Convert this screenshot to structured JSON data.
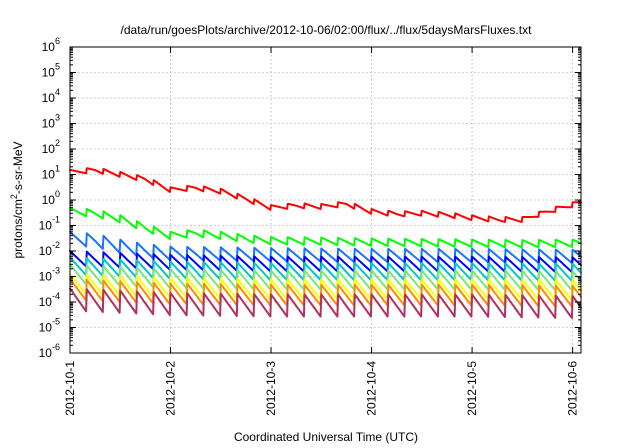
{
  "chart_data": {
    "type": "line",
    "title": "/data/run/goesPlots/archive/2012-10-06/02:00/flux/../flux/5daysMarsFluxes.txt",
    "xlabel": "Coordinated Universal Time (UTC)",
    "ylabel_parts": [
      "protons/cm",
      "2",
      "-s-sr-MeV"
    ],
    "y_scale": "log",
    "ylim": [
      1e-06,
      1000000.0
    ],
    "xlim": [
      "2012-10-01T00:00",
      "2012-10-06T02:00"
    ],
    "grid": true,
    "legend": "none",
    "x_ticks": [
      "2012-10-1",
      "2012-10-2",
      "2012-10-3",
      "2012-10-4",
      "2012-10-5",
      "2012-10-6"
    ],
    "y_ticks": [
      {
        "base": "10",
        "exp": "-6"
      },
      {
        "base": "10",
        "exp": "-5"
      },
      {
        "base": "10",
        "exp": "-4"
      },
      {
        "base": "10",
        "exp": "-3"
      },
      {
        "base": "10",
        "exp": "-2"
      },
      {
        "base": "10",
        "exp": "-1"
      },
      {
        "base": "10",
        "exp": "0"
      },
      {
        "base": "10",
        "exp": "1"
      },
      {
        "base": "10",
        "exp": "2"
      },
      {
        "base": "10",
        "exp": "3"
      },
      {
        "base": "10",
        "exp": "4"
      },
      {
        "base": "10",
        "exp": "5"
      },
      {
        "base": "10",
        "exp": "6"
      }
    ],
    "cycle_period_hours": 4,
    "series": [
      {
        "color": "#ff0000",
        "points": [
          [
            "2012-10-01T00:00",
            12
          ],
          [
            "2012-10-01T06:00",
            15
          ],
          [
            "2012-10-01T12:00",
            10
          ],
          [
            "2012-10-01T18:00",
            6.5
          ],
          [
            "2012-10-02T00:00",
            2.5
          ],
          [
            "2012-10-02T06:00",
            3
          ],
          [
            "2012-10-02T12:00",
            2.2
          ],
          [
            "2012-10-02T18:00",
            1.1
          ],
          [
            "2012-10-03T00:00",
            0.5
          ],
          [
            "2012-10-03T06:00",
            0.6
          ],
          [
            "2012-10-03T12:00",
            0.55
          ],
          [
            "2012-10-03T18:00",
            0.7
          ],
          [
            "2012-10-04T00:00",
            0.35
          ],
          [
            "2012-10-04T06:00",
            0.28
          ],
          [
            "2012-10-04T12:00",
            0.3
          ],
          [
            "2012-10-04T18:00",
            0.26
          ],
          [
            "2012-10-05T00:00",
            0.2
          ],
          [
            "2012-10-05T06:00",
            0.17
          ],
          [
            "2012-10-05T12:00",
            0.17
          ],
          [
            "2012-10-05T18:00",
            0.35
          ],
          [
            "2012-10-06T02:00",
            0.8
          ]
        ],
        "swing": 1.6
      },
      {
        "color": "#00ff00",
        "points": [
          [
            "2012-10-01T00:00",
            0.35
          ],
          [
            "2012-10-01T06:00",
            0.3
          ],
          [
            "2012-10-01T12:00",
            0.18
          ],
          [
            "2012-10-01T18:00",
            0.08
          ],
          [
            "2012-10-02T00:00",
            0.04
          ],
          [
            "2012-10-02T06:00",
            0.05
          ],
          [
            "2012-10-02T12:00",
            0.04
          ],
          [
            "2012-10-02T18:00",
            0.03
          ],
          [
            "2012-10-03T00:00",
            0.025
          ],
          [
            "2012-10-03T12:00",
            0.024
          ],
          [
            "2012-10-04T00:00",
            0.022
          ],
          [
            "2012-10-04T12:00",
            0.021
          ],
          [
            "2012-10-05T00:00",
            0.02
          ],
          [
            "2012-10-05T12:00",
            0.019
          ],
          [
            "2012-10-06T02:00",
            0.02
          ]
        ],
        "swing": 2.0
      },
      {
        "color": "#1874ff",
        "points": [
          [
            "2012-10-01T00:00",
            0.03
          ],
          [
            "2012-10-01T06:00",
            0.025
          ],
          [
            "2012-10-01T12:00",
            0.015
          ],
          [
            "2012-10-01T18:00",
            0.01
          ],
          [
            "2012-10-02T00:00",
            0.008
          ],
          [
            "2012-10-03T00:00",
            0.007
          ],
          [
            "2012-10-04T00:00",
            0.0065
          ],
          [
            "2012-10-05T00:00",
            0.0065
          ],
          [
            "2012-10-06T02:00",
            0.006
          ]
        ],
        "swing": 3.5
      },
      {
        "color": "#0000ff",
        "points": [
          [
            "2012-10-01T00:00",
            0.005
          ],
          [
            "2012-10-02T00:00",
            0.0035
          ],
          [
            "2012-10-03T00:00",
            0.003
          ],
          [
            "2012-10-04T00:00",
            0.003
          ],
          [
            "2012-10-05T00:00",
            0.003
          ],
          [
            "2012-10-06T02:00",
            0.0028
          ]
        ],
        "swing": 4.0
      },
      {
        "color": "#00c8c8",
        "points": [
          [
            "2012-10-01T00:00",
            0.0025
          ],
          [
            "2012-10-02T00:00",
            0.0017
          ],
          [
            "2012-10-03T00:00",
            0.0015
          ],
          [
            "2012-10-04T00:00",
            0.0015
          ],
          [
            "2012-10-05T00:00",
            0.0015
          ],
          [
            "2012-10-06T02:00",
            0.0014
          ]
        ],
        "swing": 5.0
      },
      {
        "color": "#78e678",
        "points": [
          [
            "2012-10-01T00:00",
            0.0012
          ],
          [
            "2012-10-02T00:00",
            0.0008
          ],
          [
            "2012-10-03T00:00",
            0.0007
          ],
          [
            "2012-10-04T00:00",
            0.0007
          ],
          [
            "2012-10-05T00:00",
            0.0007
          ],
          [
            "2012-10-06T02:00",
            0.00065
          ]
        ],
        "swing": 6.0
      },
      {
        "color": "#ffff00",
        "points": [
          [
            "2012-10-01T00:00",
            0.0005
          ],
          [
            "2012-10-02T00:00",
            0.00035
          ],
          [
            "2012-10-03T00:00",
            0.0003
          ],
          [
            "2012-10-04T00:00",
            0.0003
          ],
          [
            "2012-10-05T00:00",
            0.0003
          ],
          [
            "2012-10-06T02:00",
            0.00028
          ]
        ],
        "swing": 6.5
      },
      {
        "color": "#ff8c00",
        "points": [
          [
            "2012-10-01T00:00",
            0.0003
          ],
          [
            "2012-10-02T00:00",
            0.0002
          ],
          [
            "2012-10-03T00:00",
            0.00018
          ],
          [
            "2012-10-04T00:00",
            0.00018
          ],
          [
            "2012-10-05T00:00",
            0.00018
          ],
          [
            "2012-10-06T02:00",
            0.00016
          ]
        ],
        "swing": 7.0
      },
      {
        "color": "#b03060",
        "points": [
          [
            "2012-10-01T00:00",
            0.00012
          ],
          [
            "2012-10-02T00:00",
            8e-05
          ],
          [
            "2012-10-03T00:00",
            7e-05
          ],
          [
            "2012-10-04T00:00",
            7e-05
          ],
          [
            "2012-10-05T00:00",
            7e-05
          ],
          [
            "2012-10-06T02:00",
            6e-05
          ]
        ],
        "swing": 8.0
      }
    ]
  }
}
